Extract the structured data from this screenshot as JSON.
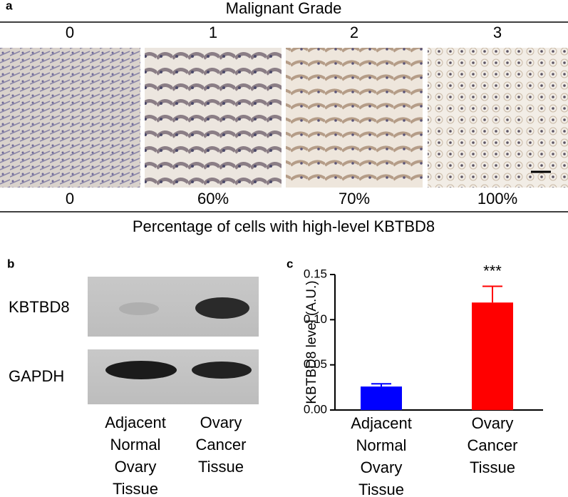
{
  "panel_a": {
    "label": "a",
    "title": "Malignant Grade",
    "grades": [
      "0",
      "1",
      "2",
      "3"
    ],
    "percentages": [
      "0",
      "60%",
      "70%",
      "100%"
    ],
    "caption": "Percentage of cells with high-level KBTBD8"
  },
  "panel_b": {
    "label": "b",
    "bands": [
      "KBTBD8",
      "GAPDH"
    ],
    "lanes": [
      [
        "Adjacent",
        "Normal",
        "Ovary",
        "Tissue"
      ],
      [
        "Ovary",
        "Cancer",
        "Tissue"
      ]
    ]
  },
  "chart_data": {
    "type": "bar",
    "panel_label": "c",
    "ylabel": "KBTBD8 level (A.U.)",
    "categories": [
      [
        "Adjacent",
        "Normal",
        "Ovary",
        "Tissue"
      ],
      [
        "Ovary",
        "Cancer",
        "Tissue"
      ]
    ],
    "values": [
      0.026,
      0.119
    ],
    "errors": [
      0.003,
      0.018
    ],
    "colors": [
      "#0000ff",
      "#ff0000"
    ],
    "annotations": [
      null,
      "***"
    ],
    "ylim": [
      0,
      0.15
    ],
    "yticks": [
      {
        "value": 0,
        "label": "0.00"
      },
      {
        "value": 0.05,
        "label": "0.05"
      },
      {
        "value": 0.1,
        "label": "0.10"
      },
      {
        "value": 0.15,
        "label": "0.15"
      }
    ]
  }
}
